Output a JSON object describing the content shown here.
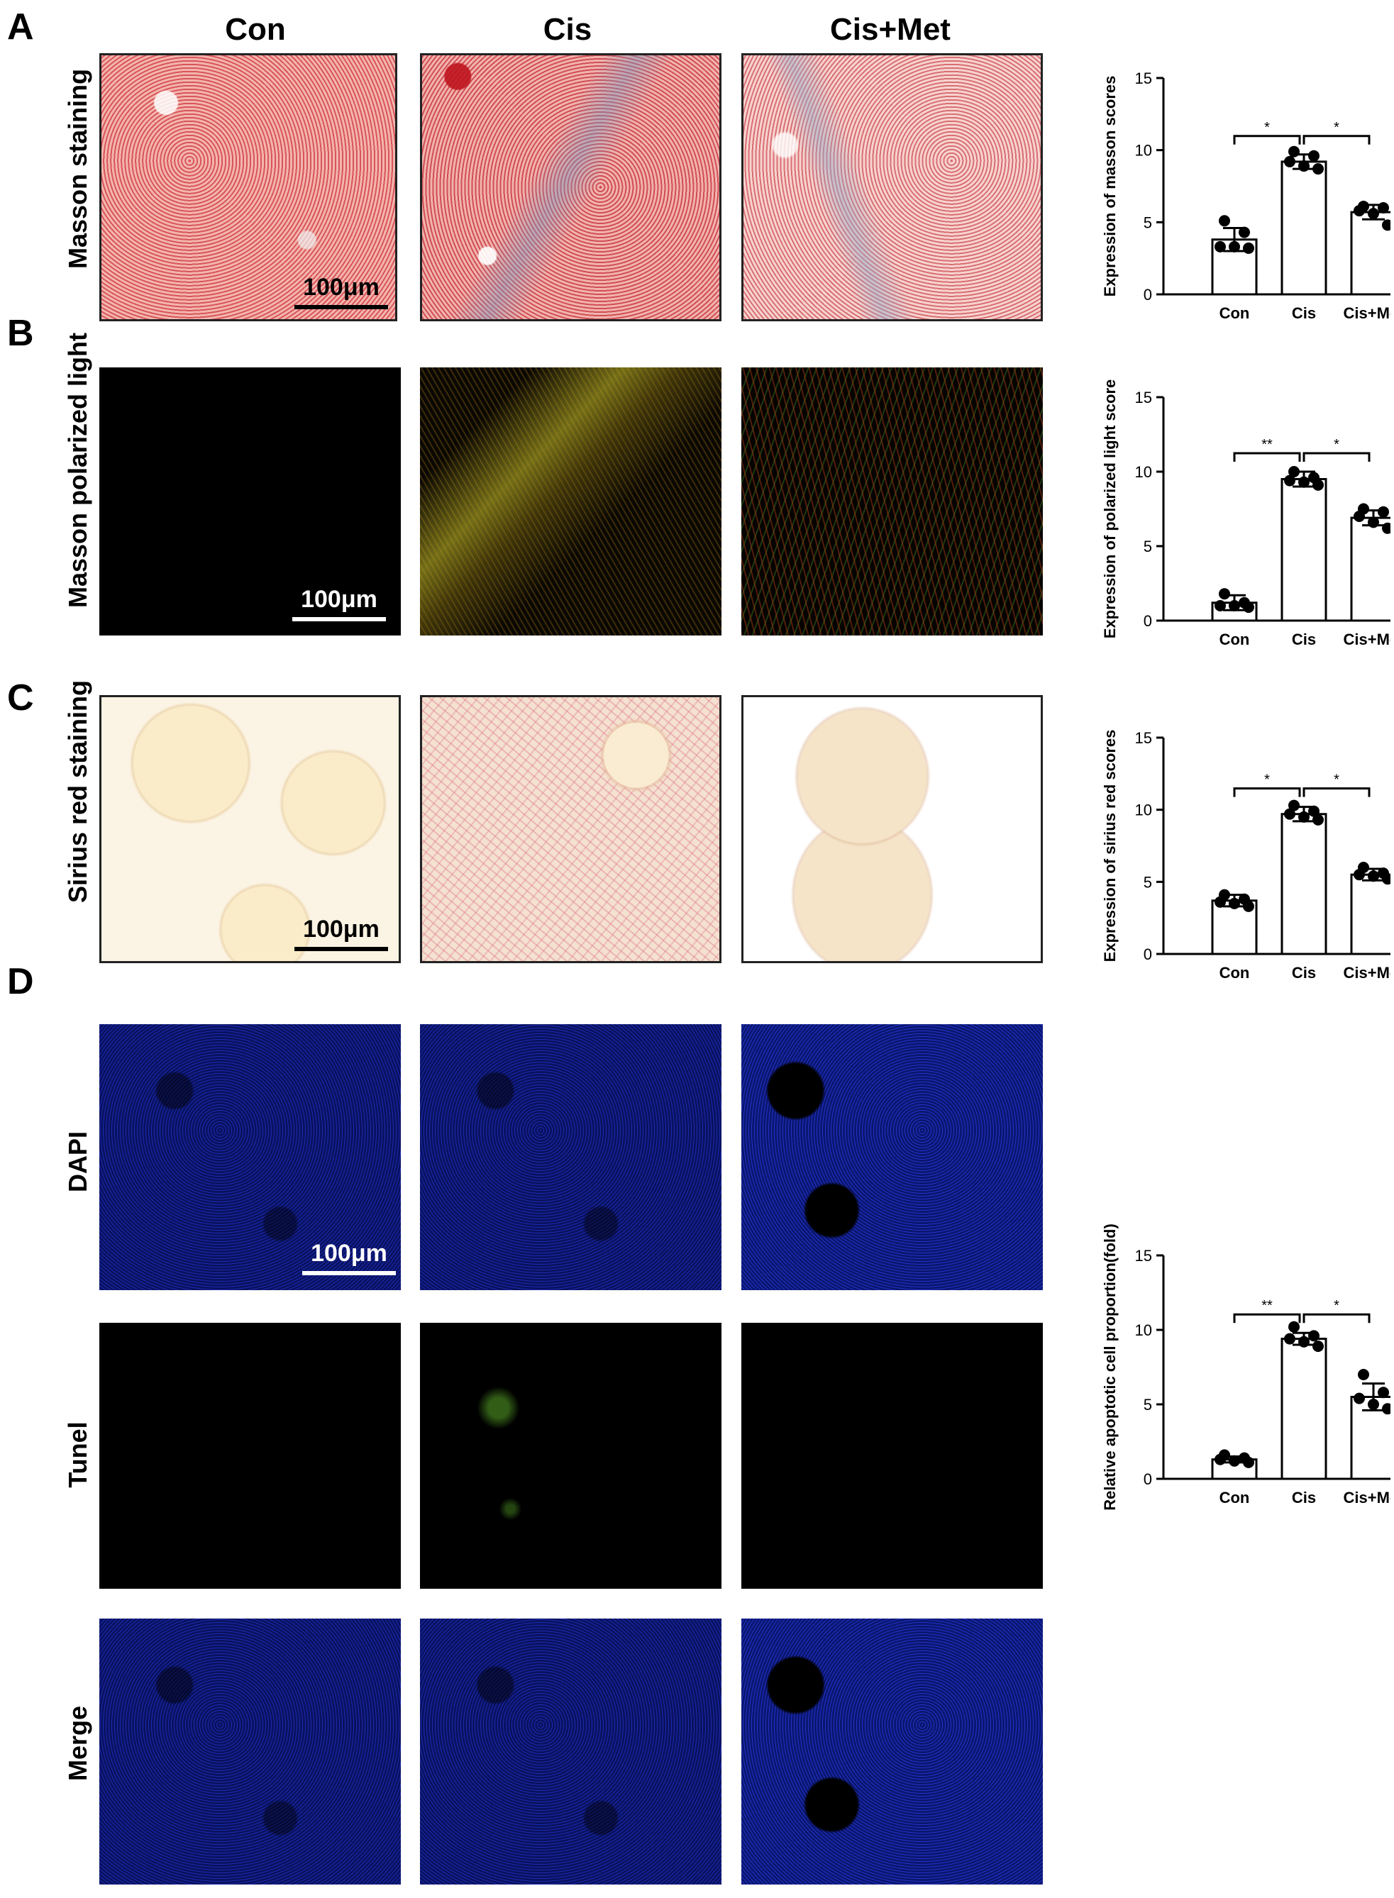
{
  "panels": {
    "a": "A",
    "b": "B",
    "c": "C",
    "d": "D"
  },
  "columns": {
    "con": "Con",
    "cis": "Cis",
    "cis_met": "Cis+Met"
  },
  "rows": {
    "masson": "Masson staining",
    "polarized": "Masson polarized light",
    "sirius": "Sirius red staining",
    "dapi": "DAPI",
    "tunel": "Tunel",
    "merge": "Merge"
  },
  "scale_bar": "100μm",
  "chart_data": [
    {
      "type": "bar",
      "categories": [
        "Con",
        "Cis",
        "Cis+Met"
      ],
      "values": [
        3.8,
        9.2,
        5.7
      ],
      "errors": [
        0.8,
        0.5,
        0.5
      ],
      "points": [
        [
          5.1,
          4.3,
          3.3,
          3.3,
          3.2
        ],
        [
          9.9,
          9.6,
          9.2,
          8.9,
          8.7
        ],
        [
          6.1,
          6.0,
          5.8,
          5.6,
          4.8
        ]
      ],
      "ylabel": "Expression of masson scores",
      "ylim": [
        0,
        15
      ],
      "yticks": [
        0,
        5,
        10,
        15
      ],
      "significance": [
        "*",
        "*"
      ]
    },
    {
      "type": "bar",
      "categories": [
        "Con",
        "Cis",
        "Cis+Met"
      ],
      "values": [
        1.2,
        9.5,
        6.9
      ],
      "errors": [
        0.5,
        0.5,
        0.5
      ],
      "points": [
        [
          1.8,
          1.2,
          1.0,
          1.0,
          0.9
        ],
        [
          10.0,
          9.6,
          9.4,
          9.3,
          9.1
        ],
        [
          7.5,
          7.3,
          7.0,
          6.6,
          6.2
        ]
      ],
      "ylabel": "Expression of polarized light score",
      "ylim": [
        0,
        15
      ],
      "yticks": [
        0,
        5,
        10,
        15
      ],
      "significance": [
        "**",
        "*"
      ]
    },
    {
      "type": "bar",
      "categories": [
        "Con",
        "Cis",
        "Cis+Met"
      ],
      "values": [
        3.7,
        9.7,
        5.5
      ],
      "errors": [
        0.4,
        0.5,
        0.4
      ],
      "points": [
        [
          4.1,
          3.8,
          3.6,
          3.5,
          3.3
        ],
        [
          10.3,
          9.9,
          9.7,
          9.5,
          9.3
        ],
        [
          6.0,
          5.6,
          5.5,
          5.4,
          5.2
        ]
      ],
      "ylabel": "Expression of sirius red scores",
      "ylim": [
        0,
        15
      ],
      "yticks": [
        0,
        5,
        10,
        15
      ],
      "significance": [
        "*",
        "*"
      ]
    },
    {
      "type": "bar",
      "categories": [
        "Con",
        "Cis",
        "Cis+Met"
      ],
      "values": [
        1.3,
        9.4,
        5.5
      ],
      "errors": [
        0.2,
        0.4,
        0.9
      ],
      "points": [
        [
          1.6,
          1.4,
          1.3,
          1.2,
          1.1
        ],
        [
          10.2,
          9.6,
          9.4,
          9.2,
          8.9
        ],
        [
          7.0,
          5.8,
          5.4,
          5.0,
          4.7
        ]
      ],
      "ylabel": "Relative apoptotic cell proportion(fold)",
      "ylim": [
        0,
        15
      ],
      "yticks": [
        0,
        5,
        10,
        15
      ],
      "significance": [
        "**",
        "*"
      ]
    }
  ]
}
